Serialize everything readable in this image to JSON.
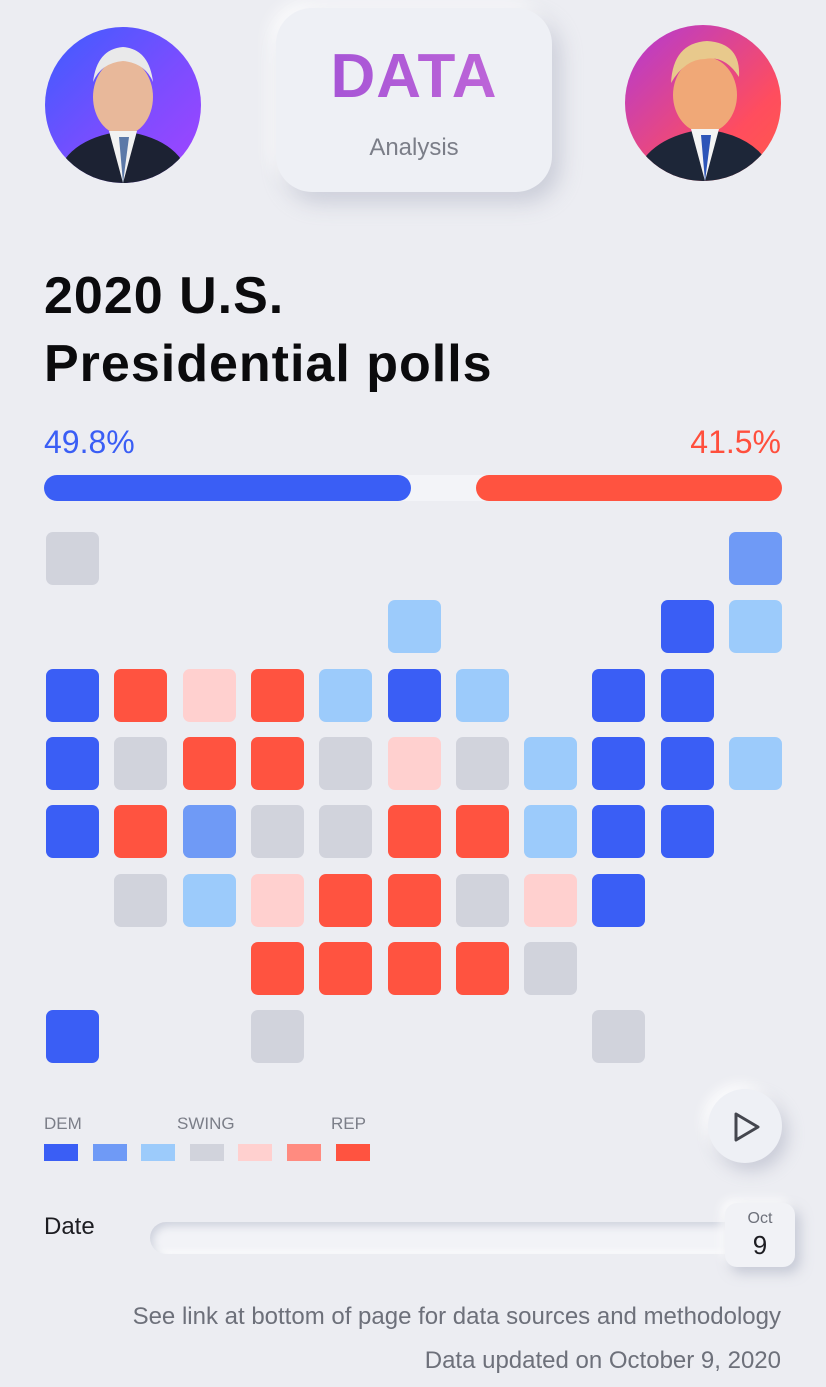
{
  "header": {
    "logo_title": "DATA",
    "logo_subtitle": "Analysis",
    "left_candidate_avatar": "democratic-candidate-portrait",
    "right_candidate_avatar": "republican-candidate-portrait"
  },
  "headline": {
    "line1": "2020 U.S.",
    "line2": "Presidential polls"
  },
  "polls": {
    "dem_pct_label": "49.8%",
    "rep_pct_label": "41.5%",
    "dem_pct": 49.8,
    "rep_pct": 41.5
  },
  "colors": {
    "dem_strong": "#3a5ef5",
    "dem_lean": "#6f9af6",
    "dem_tilt": "#9ccbfb",
    "swing": "#d1d3dc",
    "rep_tilt": "#ffd0cf",
    "rep_lean": "#ff8b80",
    "rep_strong": "#ff5340",
    "bar_track": "#f3f4f8"
  },
  "legend": {
    "dem_label": "DEM",
    "swing_label": "SWING",
    "rep_label": "REP",
    "swatches": [
      "dem_strong",
      "dem_lean",
      "dem_tilt",
      "swing",
      "rep_tilt",
      "rep_lean",
      "rep_strong"
    ]
  },
  "map_grid": {
    "rows": [
      [
        "swing",
        null,
        null,
        null,
        null,
        null,
        null,
        null,
        null,
        null,
        "dem_lean"
      ],
      [
        null,
        null,
        null,
        null,
        null,
        "dem_tilt",
        null,
        null,
        null,
        "dem_strong",
        "dem_tilt"
      ],
      [
        "dem_strong",
        "rep_strong",
        "rep_tilt",
        "rep_strong",
        "dem_tilt",
        "dem_strong",
        "dem_tilt",
        null,
        "dem_strong",
        "dem_strong",
        null
      ],
      [
        "dem_strong",
        "swing",
        "rep_strong",
        "rep_strong",
        "swing",
        "rep_tilt",
        "swing",
        "dem_tilt",
        "dem_strong",
        "dem_strong",
        "dem_tilt"
      ],
      [
        "dem_strong",
        "rep_strong",
        "dem_lean",
        "swing",
        "swing",
        "rep_strong",
        "rep_strong",
        "dem_tilt",
        "dem_strong",
        "dem_strong",
        null
      ],
      [
        null,
        "swing",
        "dem_tilt",
        "rep_tilt",
        "rep_strong",
        "rep_strong",
        "swing",
        "rep_tilt",
        "dem_strong",
        null,
        null
      ],
      [
        null,
        null,
        null,
        "rep_strong",
        "rep_strong",
        "rep_strong",
        "rep_strong",
        "swing",
        null,
        null,
        null
      ],
      [
        "dem_strong",
        null,
        null,
        "swing",
        null,
        null,
        null,
        null,
        "swing",
        null,
        null
      ]
    ]
  },
  "controls": {
    "play_icon": "play-icon",
    "date_label": "Date",
    "slider_month": "Oct",
    "slider_day": "9",
    "slider_position": 1.0
  },
  "footer": {
    "sources_note": "See link at bottom of page for data sources and methodology",
    "updated_note": "Data updated on October 9, 2020"
  }
}
